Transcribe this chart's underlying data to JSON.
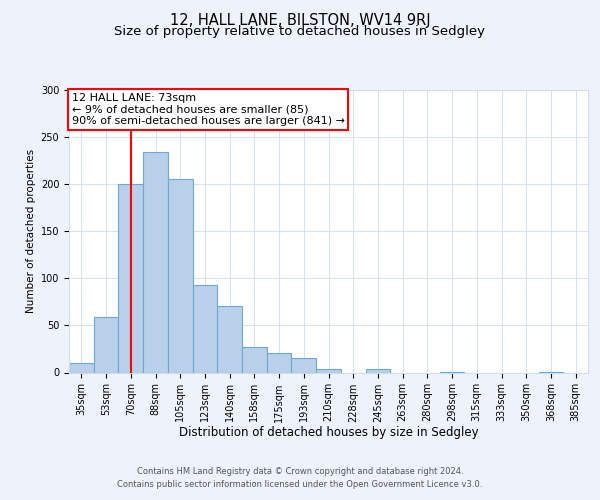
{
  "title": "12, HALL LANE, BILSTON, WV14 9RJ",
  "subtitle": "Size of property relative to detached houses in Sedgley",
  "xlabel": "Distribution of detached houses by size in Sedgley",
  "ylabel": "Number of detached properties",
  "bar_labels": [
    "35sqm",
    "53sqm",
    "70sqm",
    "88sqm",
    "105sqm",
    "123sqm",
    "140sqm",
    "158sqm",
    "175sqm",
    "193sqm",
    "210sqm",
    "228sqm",
    "245sqm",
    "263sqm",
    "280sqm",
    "298sqm",
    "315sqm",
    "333sqm",
    "350sqm",
    "368sqm",
    "385sqm"
  ],
  "bar_values": [
    10,
    59,
    200,
    234,
    205,
    93,
    71,
    27,
    21,
    15,
    4,
    0,
    4,
    0,
    0,
    1,
    0,
    0,
    0,
    1,
    0
  ],
  "bar_color": "#b8d0ea",
  "bar_edge_color": "#6aaad4",
  "bar_edge_width": 0.8,
  "vline_x_index": 2,
  "vline_color": "red",
  "vline_linewidth": 1.5,
  "annotation_box_text": "12 HALL LANE: 73sqm\n← 9% of detached houses are smaller (85)\n90% of semi-detached houses are larger (841) →",
  "ylim": [
    0,
    300
  ],
  "yticks": [
    0,
    50,
    100,
    150,
    200,
    250,
    300
  ],
  "background_color": "#eef2fa",
  "plot_bg_color": "#ffffff",
  "grid_color": "#d0dcf0",
  "footer_line1": "Contains HM Land Registry data © Crown copyright and database right 2024.",
  "footer_line2": "Contains public sector information licensed under the Open Government Licence v3.0.",
  "title_fontsize": 10.5,
  "subtitle_fontsize": 9.5,
  "xlabel_fontsize": 8.5,
  "ylabel_fontsize": 7.5,
  "tick_fontsize": 7,
  "annotation_fontsize": 8,
  "footer_fontsize": 6
}
